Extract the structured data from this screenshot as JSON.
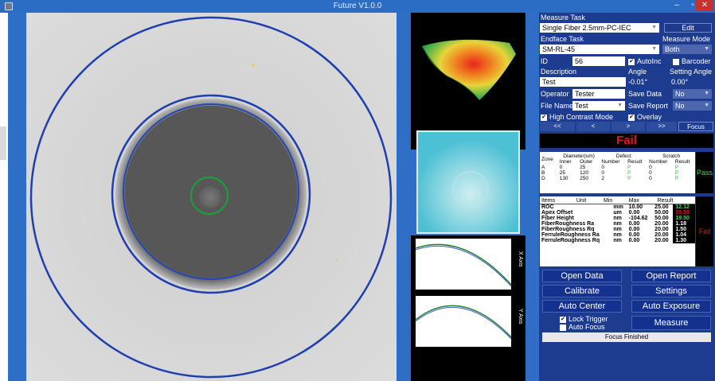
{
  "window": {
    "title": "Future V1.0.0",
    "controls": {
      "minimize": "–",
      "maximize": "▫",
      "close": "✕"
    }
  },
  "plots": {
    "x_axis_label": "X Axis",
    "y_axis_label": "Y Axis"
  },
  "panel": {
    "measure_task_label": "Measure Task",
    "measure_task_value": "Single Fiber 2.5mm-PC-IEC",
    "edit_label": "Edit",
    "endface_task_label": "Endface Task",
    "endface_task_value": "SM-RL-45",
    "measure_mode_label": "Measure Mode",
    "measure_mode_value": "Both",
    "id_label": "ID",
    "id_value": "56",
    "autoinc_label": "AutoInc",
    "barcoder_label": "Barcoder",
    "description_label": "Description",
    "angle_label": "Angle",
    "setting_angle_label": "Setting Angle",
    "description_value": "Test",
    "angle_value": "-0.01°",
    "setting_angle_value": "0.00°",
    "operator_label": "Operator",
    "operator_value": "Tester",
    "save_data_label": "Save Data",
    "save_data_value": "No",
    "file_name_label": "File Name",
    "file_name_value": "Test",
    "save_report_label": "Save Report",
    "save_report_value": "No",
    "high_contrast_label": "High Contrast Mode",
    "overlay_label": "Overlay",
    "nav": [
      "<<",
      "<",
      ">",
      ">>"
    ],
    "focus_label": "Focus",
    "result_banner": "Fail"
  },
  "zone_table": {
    "headers": {
      "zone": "Zone",
      "diameter": "Diameter(um)",
      "inner": "Inner",
      "outer": "Outer",
      "defect": "Defect",
      "scratch": "Scratch",
      "number1": "Number",
      "result1": "Result",
      "number2": "Number",
      "result2": "Result"
    },
    "rows": [
      {
        "zone": "A",
        "inner": "0",
        "outer": "25",
        "defect_num": "0",
        "defect_res": "P",
        "scratch_num": "0",
        "scratch_res": "P"
      },
      {
        "zone": "B",
        "inner": "25",
        "outer": "120",
        "defect_num": "0",
        "defect_res": "P",
        "scratch_num": "0",
        "scratch_res": "P"
      },
      {
        "zone": "D",
        "inner": "130",
        "outer": "250",
        "defect_num": "2",
        "defect_res": "P",
        "scratch_num": "0",
        "scratch_res": "P"
      }
    ],
    "overall": "Pass"
  },
  "items_table": {
    "headers": {
      "items": "Items",
      "unit": "Unit",
      "min": "Min",
      "max": "Max",
      "result": "Result"
    },
    "rows": [
      {
        "item": "ROC",
        "unit": "mm",
        "min": "10.00",
        "max": "25.00",
        "result": "12.12",
        "status": "pass"
      },
      {
        "item": "Apex Offset",
        "unit": "um",
        "min": "0.00",
        "max": "50.00",
        "result": "55.59",
        "status": "fail"
      },
      {
        "item": "Fiber Height",
        "unit": "nm",
        "min": "-104.62",
        "max": "50.00",
        "result": "19.50",
        "status": "pass"
      },
      {
        "item": "FiberRoughness Ra",
        "unit": "nm",
        "min": "0.00",
        "max": "20.00",
        "result": "1.18",
        "status": "none"
      },
      {
        "item": "FiberRoughness Rq",
        "unit": "nm",
        "min": "0.00",
        "max": "20.00",
        "result": "1.50",
        "status": "none"
      },
      {
        "item": "FerruleRoughness Ra",
        "unit": "nm",
        "min": "0.00",
        "max": "20.00",
        "result": "1.04",
        "status": "none"
      },
      {
        "item": "FerruleRoughness Rq",
        "unit": "nm",
        "min": "0.00",
        "max": "20.00",
        "result": "1.30",
        "status": "none"
      }
    ],
    "overall": "Fail"
  },
  "buttons": {
    "open_data": "Open Data",
    "open_report": "Open Report",
    "calibrate": "Calibrate",
    "settings": "Settings",
    "auto_center": "Auto Center",
    "auto_exposure": "Auto Exposure",
    "lock_trigger": "Lock Trigger",
    "auto_focus": "Auto Focus",
    "measure": "Measure"
  },
  "status": "Focus Finished",
  "colors": {
    "panel_bg": "#1d3c8f",
    "pass": "#2ee04a",
    "fail": "#e3181f",
    "ring": "#1f3fb0",
    "core_ring": "#1f9c3a"
  }
}
